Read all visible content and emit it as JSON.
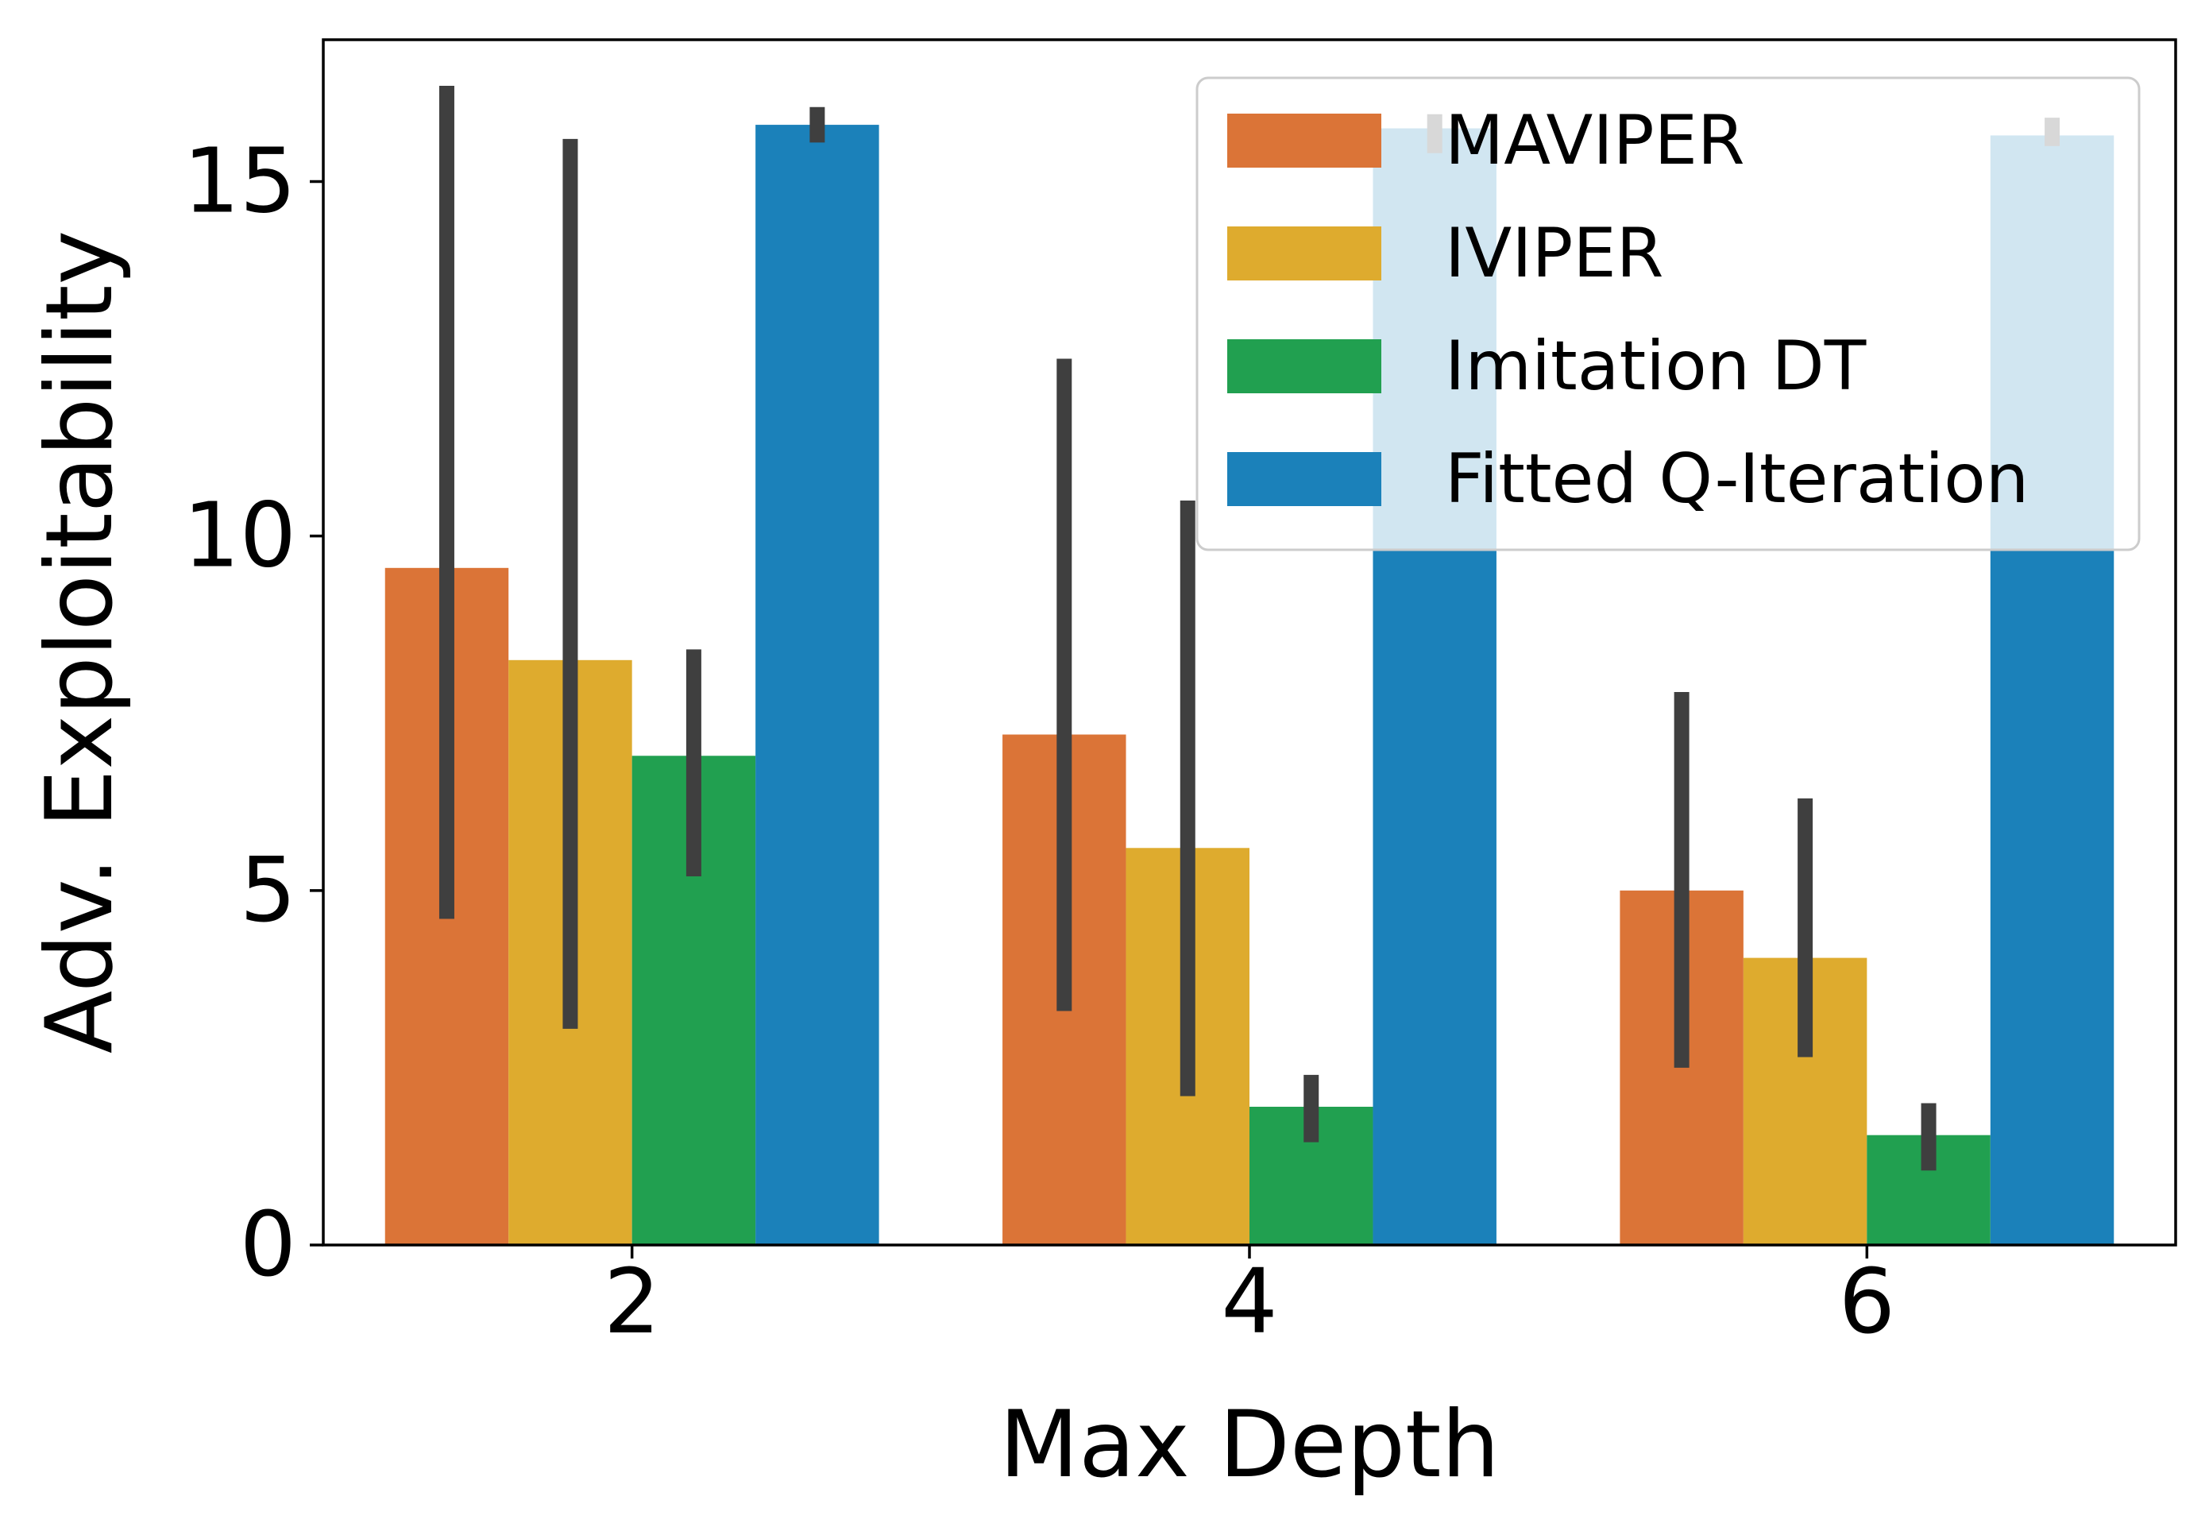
{
  "chart_data": {
    "type": "bar",
    "title": "",
    "xlabel": "Max Depth",
    "ylabel": "Adv. Exploitability",
    "categories": [
      "2",
      "4",
      "6"
    ],
    "ylim": [
      0,
      17
    ],
    "yticks": [
      "0",
      "5",
      "10",
      "15"
    ],
    "grid": false,
    "legend_position": "top-right",
    "series": [
      {
        "name": "MAVIPER",
        "color": "#DB7437",
        "values": [
          9.55,
          7.2,
          5.0
        ],
        "ci_low": [
          4.6,
          3.3,
          2.5
        ],
        "ci_high": [
          16.35,
          12.5,
          7.8
        ]
      },
      {
        "name": "IVIPER",
        "color": "#DEAB2E",
        "values": [
          8.25,
          5.6,
          4.05
        ],
        "ci_low": [
          3.05,
          2.1,
          2.65
        ],
        "ci_high": [
          15.6,
          10.5,
          6.3
        ]
      },
      {
        "name": "Imitation DT",
        "color": "#21A050",
        "values": [
          6.9,
          1.95,
          1.55
        ],
        "ci_low": [
          5.2,
          1.45,
          1.05
        ],
        "ci_high": [
          8.4,
          2.4,
          2.0
        ]
      },
      {
        "name": "Fitted Q-Iteration",
        "color": "#1B81BA",
        "values": [
          15.8,
          15.75,
          15.65
        ],
        "ci_low": [
          15.55,
          15.4,
          15.5
        ],
        "ci_high": [
          16.05,
          15.95,
          15.9
        ]
      }
    ]
  }
}
